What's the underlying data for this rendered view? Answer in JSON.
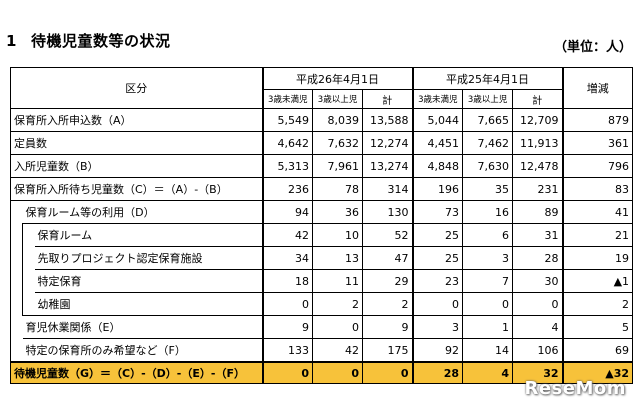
{
  "heading": {
    "number": "1",
    "title": "待機児童数等の状況",
    "unit": "（単位：人）"
  },
  "table": {
    "kubun": "区分",
    "period_2014": "平成26年4月1日",
    "period_2013": "平成25年4月1日",
    "change": "増減",
    "sub_under3": "3歳未満児",
    "sub_over3": "3歳以上児",
    "sub_total": "計",
    "rows": [
      {
        "label": "保育所入所申込数（A）",
        "v": [
          "5,549",
          "8,039",
          "13,588",
          "5,044",
          "7,665",
          "12,709",
          "879"
        ]
      },
      {
        "label": "定員数",
        "v": [
          "4,642",
          "7,632",
          "12,274",
          "4,451",
          "7,462",
          "11,913",
          "361"
        ]
      },
      {
        "label": "入所児童数（B）",
        "v": [
          "5,313",
          "7,961",
          "13,274",
          "4,848",
          "7,630",
          "12,478",
          "796"
        ]
      },
      {
        "label": "保育所入所待ち児童数（C）＝（A）-（B）",
        "v": [
          "236",
          "78",
          "314",
          "196",
          "35",
          "231",
          "83"
        ]
      },
      {
        "label": "保育ルーム等の利用（D）",
        "v": [
          "94",
          "36",
          "130",
          "73",
          "16",
          "89",
          "41"
        ]
      },
      {
        "label": "保育ルーム",
        "v": [
          "42",
          "10",
          "52",
          "25",
          "6",
          "31",
          "21"
        ]
      },
      {
        "label": "先取りプロジェクト認定保育施設",
        "v": [
          "34",
          "13",
          "47",
          "25",
          "3",
          "28",
          "19"
        ]
      },
      {
        "label": "特定保育",
        "v": [
          "18",
          "11",
          "29",
          "23",
          "7",
          "30",
          "▲1"
        ]
      },
      {
        "label": "幼稚園",
        "v": [
          "0",
          "2",
          "2",
          "0",
          "0",
          "0",
          "2"
        ]
      },
      {
        "label": "育児休業関係（E）",
        "v": [
          "9",
          "0",
          "9",
          "3",
          "1",
          "4",
          "5"
        ]
      },
      {
        "label": "特定の保育所のみ希望など（F）",
        "v": [
          "133",
          "42",
          "175",
          "92",
          "14",
          "106",
          "69"
        ]
      }
    ],
    "total": {
      "label": "待機児童数（G）＝（C）-（D）-（E）-（F）",
      "v": [
        "0",
        "0",
        "0",
        "28",
        "4",
        "32",
        "▲32"
      ]
    }
  },
  "watermark": "ReseMom",
  "colors": {
    "total_row_bg": "#f7c23a"
  }
}
